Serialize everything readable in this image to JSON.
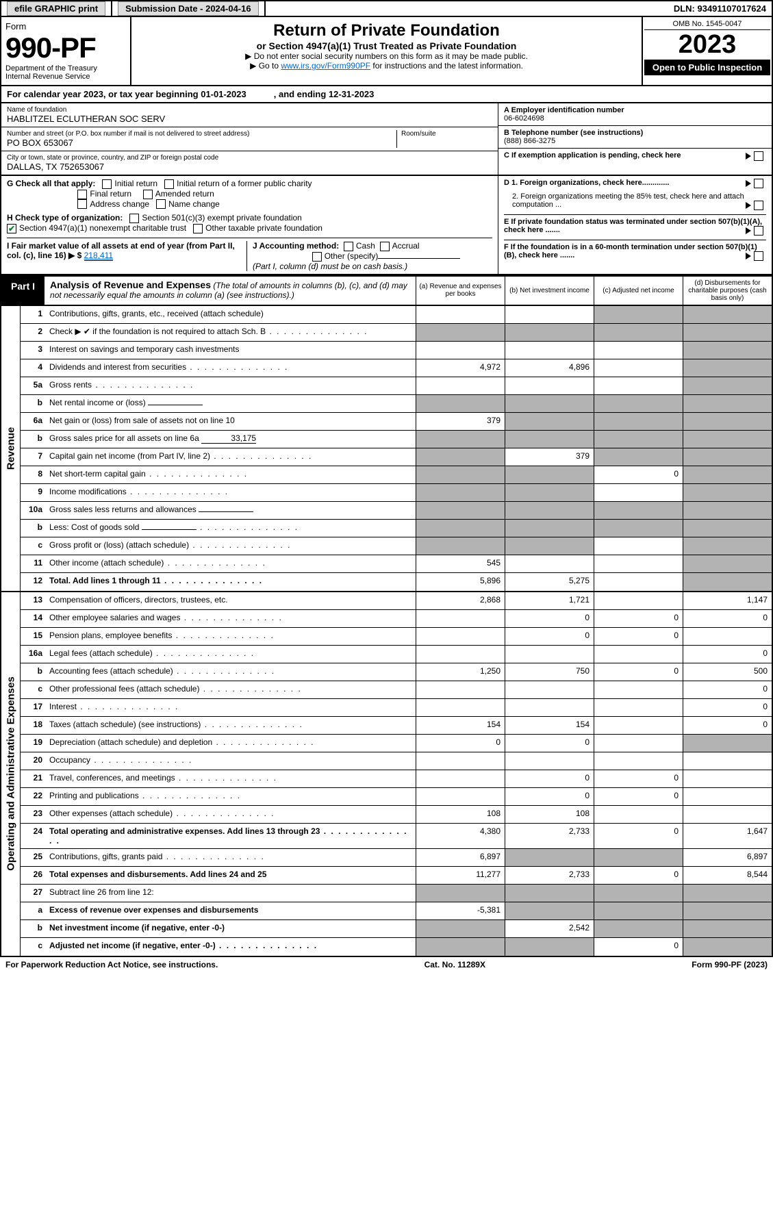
{
  "topbar": {
    "efile": "efile GRAPHIC print",
    "submission_label": "Submission Date - 2024-04-16",
    "dln": "DLN: 93491107017624"
  },
  "header": {
    "form_word": "Form",
    "form_no": "990-PF",
    "dept": "Department of the Treasury",
    "irs": "Internal Revenue Service",
    "title": "Return of Private Foundation",
    "subtitle": "or Section 4947(a)(1) Trust Treated as Private Foundation",
    "note1": "▶ Do not enter social security numbers on this form as it may be made public.",
    "note2_pre": "▶ Go to ",
    "note2_link": "www.irs.gov/Form990PF",
    "note2_post": " for instructions and the latest information.",
    "omb": "OMB No. 1545-0047",
    "year": "2023",
    "open_public": "Open to Public Inspection"
  },
  "calyear": {
    "text": "For calendar year 2023, or tax year beginning 01-01-2023",
    "ending": ", and ending 12-31-2023"
  },
  "meta": {
    "name_lbl": "Name of foundation",
    "name_val": "HABLITZEL ECLUTHERAN SOC SERV",
    "addr_lbl": "Number and street (or P.O. box number if mail is not delivered to street address)",
    "addr_val": "PO BOX 653067",
    "room_lbl": "Room/suite",
    "city_lbl": "City or town, state or province, country, and ZIP or foreign postal code",
    "city_val": "DALLAS, TX  752653067",
    "ein_lbl": "A Employer identification number",
    "ein_val": "06-6024698",
    "tel_lbl": "B Telephone number (see instructions)",
    "tel_val": "(888) 866-3275",
    "c_lbl": "C If exemption application is pending, check here",
    "d1_lbl": "D 1. Foreign organizations, check here.............",
    "d2_lbl": "2. Foreign organizations meeting the 85% test, check here and attach computation ...",
    "e_lbl": "E  If private foundation status was terminated under section 507(b)(1)(A), check here .......",
    "f_lbl": "F  If the foundation is in a 60-month termination under section 507(b)(1)(B), check here ......."
  },
  "checks": {
    "g_lbl": "G Check all that apply:",
    "initial": "Initial return",
    "initial_former": "Initial return of a former public charity",
    "final": "Final return",
    "amended": "Amended return",
    "addr_change": "Address change",
    "name_change": "Name change",
    "h_lbl": "H Check type of organization:",
    "h_501c3": "Section 501(c)(3) exempt private foundation",
    "h_4947": "Section 4947(a)(1) nonexempt charitable trust",
    "h_other_tax": "Other taxable private foundation",
    "i_lbl": "I Fair market value of all assets at end of year (from Part II, col. (c), line 16) ▶ $",
    "i_val": "218,411",
    "j_lbl": "J Accounting method:",
    "j_cash": "Cash",
    "j_accrual": "Accrual",
    "j_other": "Other (specify)",
    "j_note": "(Part I, column (d) must be on cash basis.)"
  },
  "part1": {
    "badge": "Part I",
    "title": "Analysis of Revenue and Expenses",
    "title_note": " (The total of amounts in columns (b), (c), and (d) may not necessarily equal the amounts in column (a) (see instructions).)",
    "col_a": "(a)  Revenue and expenses per books",
    "col_b": "(b)  Net investment income",
    "col_c": "(c)  Adjusted net income",
    "col_d": "(d)  Disbursements for charitable purposes (cash basis only)"
  },
  "side_labels": {
    "revenue": "Revenue",
    "operating": "Operating and Administrative Expenses"
  },
  "rows": [
    {
      "n": "1",
      "desc": "Contributions, gifts, grants, etc., received (attach schedule)",
      "a": "",
      "b": "",
      "c": "grey",
      "d": "grey"
    },
    {
      "n": "2",
      "desc": "Check ▶ ✔ if the foundation is not required to attach Sch. B",
      "a": "grey",
      "b": "grey",
      "c": "grey",
      "d": "grey",
      "dots": true
    },
    {
      "n": "3",
      "desc": "Interest on savings and temporary cash investments",
      "a": "",
      "b": "",
      "c": "",
      "d": "grey"
    },
    {
      "n": "4",
      "desc": "Dividends and interest from securities",
      "a": "4,972",
      "b": "4,896",
      "c": "",
      "d": "grey",
      "dots": true
    },
    {
      "n": "5a",
      "desc": "Gross rents",
      "a": "",
      "b": "",
      "c": "",
      "d": "grey",
      "dots": true
    },
    {
      "n": "b",
      "desc": "Net rental income or (loss)",
      "a": "grey",
      "b": "grey",
      "c": "grey",
      "d": "grey",
      "inline_field": ""
    },
    {
      "n": "6a",
      "desc": "Net gain or (loss) from sale of assets not on line 10",
      "a": "379",
      "b": "grey",
      "c": "grey",
      "d": "grey"
    },
    {
      "n": "b",
      "desc": "Gross sales price for all assets on line 6a",
      "a": "grey",
      "b": "grey",
      "c": "grey",
      "d": "grey",
      "inline_field": "33,175"
    },
    {
      "n": "7",
      "desc": "Capital gain net income (from Part IV, line 2)",
      "a": "grey",
      "b": "379",
      "c": "grey",
      "d": "grey",
      "dots": true
    },
    {
      "n": "8",
      "desc": "Net short-term capital gain",
      "a": "grey",
      "b": "grey",
      "c": "0",
      "d": "grey",
      "dots": true
    },
    {
      "n": "9",
      "desc": "Income modifications",
      "a": "grey",
      "b": "grey",
      "c": "",
      "d": "grey",
      "dots": true
    },
    {
      "n": "10a",
      "desc": "Gross sales less returns and allowances",
      "a": "grey",
      "b": "grey",
      "c": "grey",
      "d": "grey",
      "inline_field": ""
    },
    {
      "n": "b",
      "desc": "Less: Cost of goods sold",
      "a": "grey",
      "b": "grey",
      "c": "grey",
      "d": "grey",
      "inline_field": "",
      "dots": true
    },
    {
      "n": "c",
      "desc": "Gross profit or (loss) (attach schedule)",
      "a": "grey",
      "b": "grey",
      "c": "",
      "d": "grey",
      "dots": true
    },
    {
      "n": "11",
      "desc": "Other income (attach schedule)",
      "a": "545",
      "b": "",
      "c": "",
      "d": "grey",
      "dots": true
    },
    {
      "n": "12",
      "desc": "Total. Add lines 1 through 11",
      "a": "5,896",
      "b": "5,275",
      "c": "",
      "d": "grey",
      "bold": true,
      "dots": true
    }
  ],
  "rows_exp": [
    {
      "n": "13",
      "desc": "Compensation of officers, directors, trustees, etc.",
      "a": "2,868",
      "b": "1,721",
      "c": "",
      "d": "1,147"
    },
    {
      "n": "14",
      "desc": "Other employee salaries and wages",
      "a": "",
      "b": "0",
      "c": "0",
      "d": "0",
      "dots": true
    },
    {
      "n": "15",
      "desc": "Pension plans, employee benefits",
      "a": "",
      "b": "0",
      "c": "0",
      "d": "",
      "dots": true
    },
    {
      "n": "16a",
      "desc": "Legal fees (attach schedule)",
      "a": "",
      "b": "",
      "c": "",
      "d": "0",
      "dots": true
    },
    {
      "n": "b",
      "desc": "Accounting fees (attach schedule)",
      "a": "1,250",
      "b": "750",
      "c": "0",
      "d": "500",
      "dots": true
    },
    {
      "n": "c",
      "desc": "Other professional fees (attach schedule)",
      "a": "",
      "b": "",
      "c": "",
      "d": "0",
      "dots": true
    },
    {
      "n": "17",
      "desc": "Interest",
      "a": "",
      "b": "",
      "c": "",
      "d": "0",
      "dots": true
    },
    {
      "n": "18",
      "desc": "Taxes (attach schedule) (see instructions)",
      "a": "154",
      "b": "154",
      "c": "",
      "d": "0",
      "dots": true
    },
    {
      "n": "19",
      "desc": "Depreciation (attach schedule) and depletion",
      "a": "0",
      "b": "0",
      "c": "",
      "d": "grey",
      "dots": true
    },
    {
      "n": "20",
      "desc": "Occupancy",
      "a": "",
      "b": "",
      "c": "",
      "d": "",
      "dots": true
    },
    {
      "n": "21",
      "desc": "Travel, conferences, and meetings",
      "a": "",
      "b": "0",
      "c": "0",
      "d": "",
      "dots": true
    },
    {
      "n": "22",
      "desc": "Printing and publications",
      "a": "",
      "b": "0",
      "c": "0",
      "d": "",
      "dots": true
    },
    {
      "n": "23",
      "desc": "Other expenses (attach schedule)",
      "a": "108",
      "b": "108",
      "c": "",
      "d": "",
      "dots": true
    },
    {
      "n": "24",
      "desc": "Total operating and administrative expenses. Add lines 13 through 23",
      "a": "4,380",
      "b": "2,733",
      "c": "0",
      "d": "1,647",
      "bold": true,
      "dots": true
    },
    {
      "n": "25",
      "desc": "Contributions, gifts, grants paid",
      "a": "6,897",
      "b": "grey",
      "c": "grey",
      "d": "6,897",
      "dots": true
    },
    {
      "n": "26",
      "desc": "Total expenses and disbursements. Add lines 24 and 25",
      "a": "11,277",
      "b": "2,733",
      "c": "0",
      "d": "8,544",
      "bold": true
    },
    {
      "n": "27",
      "desc": "Subtract line 26 from line 12:",
      "a": "grey",
      "b": "grey",
      "c": "grey",
      "d": "grey"
    },
    {
      "n": "a",
      "desc": "Excess of revenue over expenses and disbursements",
      "a": "-5,381",
      "b": "grey",
      "c": "grey",
      "d": "grey",
      "bold": true
    },
    {
      "n": "b",
      "desc": "Net investment income (if negative, enter -0-)",
      "a": "grey",
      "b": "2,542",
      "c": "grey",
      "d": "grey",
      "bold": true
    },
    {
      "n": "c",
      "desc": "Adjusted net income (if negative, enter -0-)",
      "a": "grey",
      "b": "grey",
      "c": "0",
      "d": "grey",
      "bold": true,
      "dots": true
    }
  ],
  "footer": {
    "left": "For Paperwork Reduction Act Notice, see instructions.",
    "mid": "Cat. No. 11289X",
    "right": "Form 990-PF (2023)"
  },
  "colors": {
    "grey_cell": "#b3b3b3",
    "link": "#0066cc",
    "check_green": "#0a842c"
  }
}
